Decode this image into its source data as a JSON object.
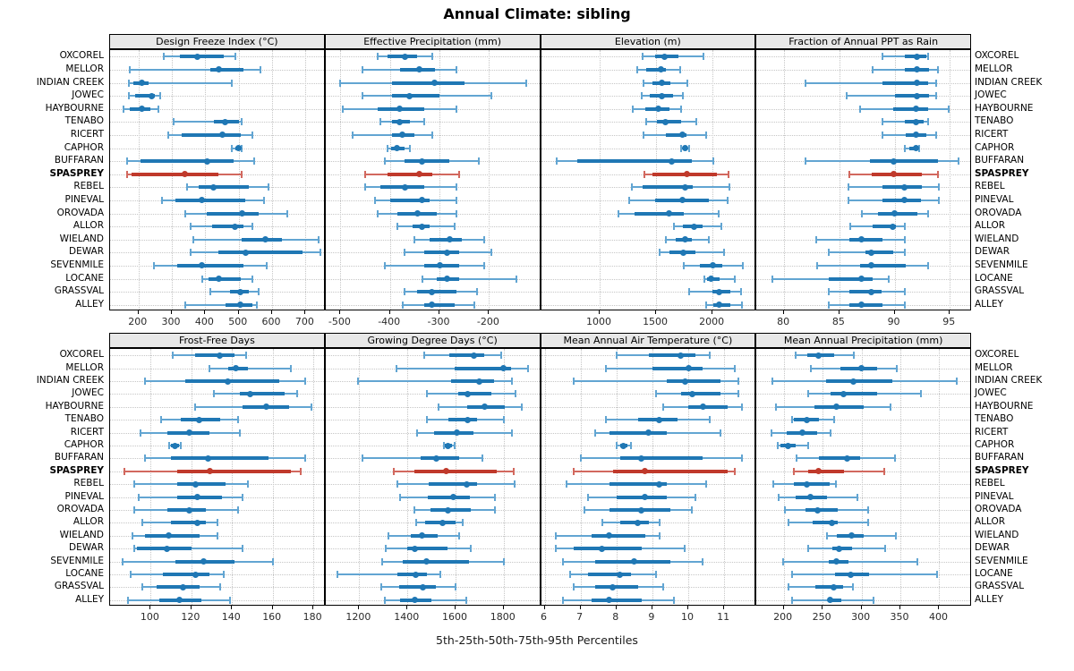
{
  "title": "Annual Climate: sibling",
  "caption": "5th-25th-50th-75th-95th Percentiles",
  "percentiles": [
    5,
    25,
    50,
    75,
    95
  ],
  "sites": [
    "OXCOREL",
    "MELLOR",
    "INDIAN CREEK",
    "JOWEC",
    "HAYBOURNE",
    "TENABO",
    "RICERT",
    "CAPHOR",
    "BUFFARAN",
    "SPASPREY",
    "REBEL",
    "PINEVAL",
    "OROVADA",
    "ALLOR",
    "WIELAND",
    "DEWAR",
    "SEVENMILE",
    "LOCANE",
    "GRASSVAL",
    "ALLEY"
  ],
  "highlight_site": "SPASPREY",
  "colors": {
    "series": "#1f77b4",
    "series_whisker": "#62a5d2",
    "highlight": "#c0392b",
    "highlight_whisker": "#d2685e",
    "grid": "#c6c6c6",
    "header_bg": "#e8e8e8",
    "border": "#000000"
  },
  "chart_data": [
    {
      "type": "scatter",
      "style": "dot-whisker-percentiles",
      "title": "Design Freeze Index (°C)",
      "xlim": [
        115,
        760
      ],
      "xticks": [
        200,
        300,
        400,
        500,
        600,
        700
      ],
      "values": [
        [
          275,
          325,
          375,
          455,
          490
        ],
        [
          175,
          415,
          440,
          515,
          565
        ],
        [
          170,
          185,
          210,
          230,
          480
        ],
        [
          170,
          190,
          240,
          250,
          265
        ],
        [
          155,
          175,
          210,
          235,
          260
        ],
        [
          305,
          425,
          460,
          500,
          510
        ],
        [
          290,
          330,
          450,
          505,
          540
        ],
        [
          480,
          490,
          500,
          505,
          510
        ],
        [
          165,
          205,
          405,
          485,
          545
        ],
        [
          165,
          180,
          340,
          440,
          510
        ],
        [
          345,
          380,
          425,
          530,
          590
        ],
        [
          270,
          310,
          390,
          520,
          575
        ],
        [
          340,
          405,
          510,
          560,
          645
        ],
        [
          355,
          420,
          490,
          515,
          540
        ],
        [
          365,
          510,
          580,
          630,
          740
        ],
        [
          355,
          440,
          520,
          690,
          745
        ],
        [
          245,
          315,
          390,
          515,
          585
        ],
        [
          390,
          410,
          440,
          505,
          540
        ],
        [
          415,
          475,
          505,
          530,
          560
        ],
        [
          340,
          460,
          505,
          540,
          555
        ]
      ]
    },
    {
      "type": "scatter",
      "style": "dot-whisker-percentiles",
      "title": "Effective Precipitation (mm)",
      "xlim": [
        -530,
        -95
      ],
      "xticks": [
        -500,
        -400,
        -300,
        -200
      ],
      "values": [
        [
          -425,
          -405,
          -370,
          -345,
          -315
        ],
        [
          -455,
          -380,
          -340,
          -310,
          -265
        ],
        [
          -500,
          -395,
          -310,
          -250,
          -125
        ],
        [
          -455,
          -395,
          -360,
          -300,
          -195
        ],
        [
          -495,
          -425,
          -380,
          -330,
          -265
        ],
        [
          -420,
          -395,
          -380,
          -360,
          -330
        ],
        [
          -475,
          -395,
          -375,
          -350,
          -315
        ],
        [
          -405,
          -397,
          -386,
          -370,
          -360
        ],
        [
          -410,
          -370,
          -335,
          -280,
          -220
        ],
        [
          -450,
          -405,
          -340,
          -315,
          -260
        ],
        [
          -450,
          -420,
          -370,
          -330,
          -265
        ],
        [
          -430,
          -400,
          -335,
          -320,
          -265
        ],
        [
          -425,
          -385,
          -345,
          -305,
          -265
        ],
        [
          -385,
          -355,
          -335,
          -320,
          -270
        ],
        [
          -350,
          -320,
          -280,
          -255,
          -210
        ],
        [
          -370,
          -330,
          -285,
          -260,
          -195
        ],
        [
          -410,
          -330,
          -300,
          -260,
          -210
        ],
        [
          -335,
          -305,
          -285,
          -260,
          -145
        ],
        [
          -370,
          -345,
          -315,
          -265,
          -225
        ],
        [
          -375,
          -330,
          -315,
          -270,
          -230
        ]
      ]
    },
    {
      "type": "scatter",
      "style": "dot-whisker-percentiles",
      "title": "Elevation (m)",
      "xlim": [
        480,
        2390
      ],
      "xticks": [
        1000,
        1500,
        2000
      ],
      "values": [
        [
          1380,
          1495,
          1575,
          1695,
          1920
        ],
        [
          1335,
          1410,
          1540,
          1590,
          1710
        ],
        [
          1390,
          1470,
          1550,
          1625,
          1775
        ],
        [
          1370,
          1440,
          1550,
          1650,
          1740
        ],
        [
          1290,
          1405,
          1520,
          1615,
          1720
        ],
        [
          1410,
          1510,
          1585,
          1720,
          1855
        ],
        [
          1390,
          1585,
          1730,
          1770,
          1940
        ],
        [
          1725,
          1735,
          1755,
          1780,
          1795
        ],
        [
          615,
          805,
          1635,
          1815,
          2010
        ],
        [
          1400,
          1465,
          1770,
          2040,
          2145
        ],
        [
          1285,
          1380,
          1760,
          1825,
          2150
        ],
        [
          1260,
          1495,
          1735,
          1965,
          2135
        ],
        [
          1165,
          1310,
          1615,
          1745,
          2055
        ],
        [
          1655,
          1735,
          1840,
          1910,
          2075
        ],
        [
          1585,
          1675,
          1755,
          1820,
          1965
        ],
        [
          1535,
          1620,
          1745,
          1845,
          2105
        ],
        [
          1745,
          1885,
          2005,
          2085,
          2270
        ],
        [
          1930,
          1955,
          1985,
          2065,
          2200
        ],
        [
          1790,
          2000,
          2055,
          2155,
          2255
        ],
        [
          1940,
          2010,
          2055,
          2155,
          2260
        ]
      ]
    },
    {
      "type": "scatter",
      "style": "dot-whisker-percentiles",
      "title": "Fraction of Annual PPT as Rain",
      "xlim": [
        77.5,
        97
      ],
      "xticks": [
        80,
        85,
        90,
        95
      ],
      "values": [
        [
          88.9,
          90.9,
          92.0,
          92.9,
          93.0
        ],
        [
          88.0,
          90.9,
          92.0,
          93.1,
          93.9
        ],
        [
          81.9,
          88.9,
          92.0,
          93.0,
          93.8
        ],
        [
          85.7,
          90.0,
          92.0,
          93.1,
          93.8
        ],
        [
          86.9,
          89.9,
          91.9,
          93.0,
          94.9
        ],
        [
          88.9,
          90.9,
          91.9,
          92.6,
          93.0
        ],
        [
          88.9,
          91.0,
          91.9,
          92.9,
          93.8
        ],
        [
          90.9,
          91.3,
          91.9,
          92.1,
          92.2
        ],
        [
          81.9,
          87.8,
          89.9,
          93.9,
          95.8
        ],
        [
          85.9,
          87.9,
          89.9,
          92.5,
          93.9
        ],
        [
          85.8,
          88.9,
          90.9,
          92.5,
          94.0
        ],
        [
          85.8,
          88.9,
          90.9,
          92.4,
          94.0
        ],
        [
          87.0,
          88.5,
          90.0,
          92.1,
          93.0
        ],
        [
          86.0,
          88.0,
          89.8,
          90.1,
          90.9
        ],
        [
          82.9,
          85.9,
          87.0,
          88.9,
          90.9
        ],
        [
          84.0,
          87.4,
          87.9,
          89.9,
          90.9
        ],
        [
          83.0,
          86.9,
          87.9,
          91.0,
          93.0
        ],
        [
          78.9,
          84.0,
          87.0,
          88.0,
          89.5
        ],
        [
          84.0,
          85.9,
          87.9,
          88.8,
          90.9
        ],
        [
          84.0,
          85.9,
          87.0,
          88.9,
          90.9
        ]
      ]
    },
    {
      "type": "scatter",
      "style": "dot-whisker-percentiles",
      "title": "Frost-Free Days",
      "xlim": [
        80,
        186
      ],
      "xticks": [
        100,
        120,
        140,
        160,
        180
      ],
      "values": [
        [
          111,
          122,
          134,
          141,
          147
        ],
        [
          129,
          138,
          142,
          148,
          169
        ],
        [
          97,
          117,
          138,
          163,
          176
        ],
        [
          131,
          144,
          149,
          166,
          172
        ],
        [
          122,
          145,
          157,
          168,
          179
        ],
        [
          105,
          115,
          124,
          134,
          143
        ],
        [
          95,
          108,
          119,
          129,
          144
        ],
        [
          109,
          110,
          112,
          114,
          115
        ],
        [
          97,
          110,
          128,
          158,
          176
        ],
        [
          87,
          113,
          129,
          169,
          174
        ],
        [
          92,
          113,
          122,
          137,
          148
        ],
        [
          94,
          113,
          123,
          135,
          145
        ],
        [
          92,
          108,
          119,
          127,
          143
        ],
        [
          96,
          110,
          123,
          127,
          133
        ],
        [
          91,
          97,
          109,
          124,
          133
        ],
        [
          92,
          93,
          108,
          120,
          145
        ],
        [
          86,
          112,
          126,
          141,
          160
        ],
        [
          90,
          106,
          122,
          129,
          136
        ],
        [
          96,
          103,
          116,
          124,
          134
        ],
        [
          89,
          104,
          114,
          125,
          139
        ]
      ]
    },
    {
      "type": "scatter",
      "style": "dot-whisker-percentiles",
      "title": "Growing Degree Days (°C)",
      "xlim": [
        1060,
        1955
      ],
      "xticks": [
        1200,
        1400,
        1600,
        1800
      ],
      "values": [
        [
          1470,
          1575,
          1675,
          1720,
          1790
        ],
        [
          1355,
          1595,
          1800,
          1830,
          1900
        ],
        [
          1195,
          1580,
          1700,
          1760,
          1835
        ],
        [
          1480,
          1610,
          1650,
          1750,
          1850
        ],
        [
          1530,
          1650,
          1720,
          1805,
          1875
        ],
        [
          1480,
          1570,
          1650,
          1690,
          1800
        ],
        [
          1440,
          1510,
          1605,
          1675,
          1835
        ],
        [
          1550,
          1555,
          1570,
          1585,
          1595
        ],
        [
          1215,
          1455,
          1520,
          1615,
          1710
        ],
        [
          1345,
          1430,
          1560,
          1770,
          1840
        ],
        [
          1360,
          1490,
          1645,
          1690,
          1845
        ],
        [
          1370,
          1485,
          1590,
          1660,
          1765
        ],
        [
          1430,
          1495,
          1570,
          1665,
          1765
        ],
        [
          1435,
          1475,
          1545,
          1600,
          1630
        ],
        [
          1320,
          1415,
          1460,
          1525,
          1615
        ],
        [
          1310,
          1400,
          1430,
          1565,
          1665
        ],
        [
          1295,
          1380,
          1480,
          1655,
          1800
        ],
        [
          1110,
          1360,
          1435,
          1480,
          1535
        ],
        [
          1290,
          1365,
          1465,
          1520,
          1600
        ],
        [
          1305,
          1370,
          1430,
          1500,
          1645
        ]
      ]
    },
    {
      "type": "scatter",
      "style": "dot-whisker-percentiles",
      "title": "Mean Annual Air Temperature (°C)",
      "xlim": [
        5.9,
        11.9
      ],
      "xticks": [
        6,
        7,
        8,
        9,
        10,
        11
      ],
      "values": [
        [
          8.0,
          8.9,
          9.8,
          10.2,
          10.6
        ],
        [
          7.7,
          9.0,
          10.0,
          10.4,
          11.3
        ],
        [
          6.8,
          9.4,
          9.9,
          10.9,
          11.4
        ],
        [
          9.1,
          9.8,
          10.1,
          10.9,
          11.4
        ],
        [
          9.3,
          10.0,
          10.4,
          11.1,
          11.5
        ],
        [
          7.7,
          8.6,
          9.2,
          9.7,
          10.6
        ],
        [
          7.4,
          7.8,
          8.9,
          9.4,
          10.9
        ],
        [
          8.0,
          8.1,
          8.2,
          8.3,
          8.4
        ],
        [
          7.0,
          8.1,
          8.7,
          10.4,
          11.5
        ],
        [
          6.8,
          7.9,
          8.8,
          11.1,
          11.3
        ],
        [
          6.6,
          7.8,
          9.2,
          9.4,
          10.5
        ],
        [
          7.2,
          8.0,
          8.8,
          9.4,
          10.2
        ],
        [
          7.1,
          7.8,
          8.7,
          9.5,
          10.1
        ],
        [
          7.6,
          8.1,
          8.6,
          8.9,
          9.2
        ],
        [
          6.3,
          7.3,
          7.8,
          8.8,
          9.2
        ],
        [
          6.3,
          6.8,
          7.6,
          8.7,
          9.9
        ],
        [
          6.5,
          7.4,
          8.5,
          9.5,
          10.4
        ],
        [
          6.7,
          7.2,
          8.1,
          8.4,
          9.1
        ],
        [
          6.8,
          7.4,
          7.9,
          8.6,
          9.3
        ],
        [
          6.5,
          7.3,
          7.8,
          8.7,
          9.6
        ]
      ]
    },
    {
      "type": "scatter",
      "style": "dot-whisker-percentiles",
      "title": "Mean Annual Precipitation (mm)",
      "xlim": [
        165,
        442
      ],
      "xticks": [
        200,
        250,
        300,
        350,
        400
      ],
      "values": [
        [
          215,
          230,
          245,
          265,
          290
        ],
        [
          235,
          273,
          300,
          320,
          345
        ],
        [
          185,
          254,
          290,
          340,
          422
        ],
        [
          232,
          260,
          277,
          320,
          376
        ],
        [
          190,
          240,
          268,
          303,
          337
        ],
        [
          211,
          213,
          230,
          245,
          265
        ],
        [
          184,
          204,
          224,
          243,
          260
        ],
        [
          192,
          196,
          205,
          215,
          231
        ],
        [
          216,
          245,
          281,
          298,
          343
        ],
        [
          213,
          232,
          245,
          278,
          329
        ],
        [
          186,
          213,
          230,
          259,
          267
        ],
        [
          194,
          215,
          234,
          256,
          295
        ],
        [
          202,
          228,
          244,
          269,
          308
        ],
        [
          206,
          237,
          262,
          270,
          308
        ],
        [
          256,
          268,
          287,
          303,
          344
        ],
        [
          232,
          263,
          271,
          288,
          330
        ],
        [
          199,
          258,
          268,
          283,
          372
        ],
        [
          211,
          266,
          286,
          310,
          397
        ],
        [
          206,
          241,
          264,
          276,
          289
        ],
        [
          211,
          257,
          260,
          274,
          316
        ]
      ]
    }
  ]
}
